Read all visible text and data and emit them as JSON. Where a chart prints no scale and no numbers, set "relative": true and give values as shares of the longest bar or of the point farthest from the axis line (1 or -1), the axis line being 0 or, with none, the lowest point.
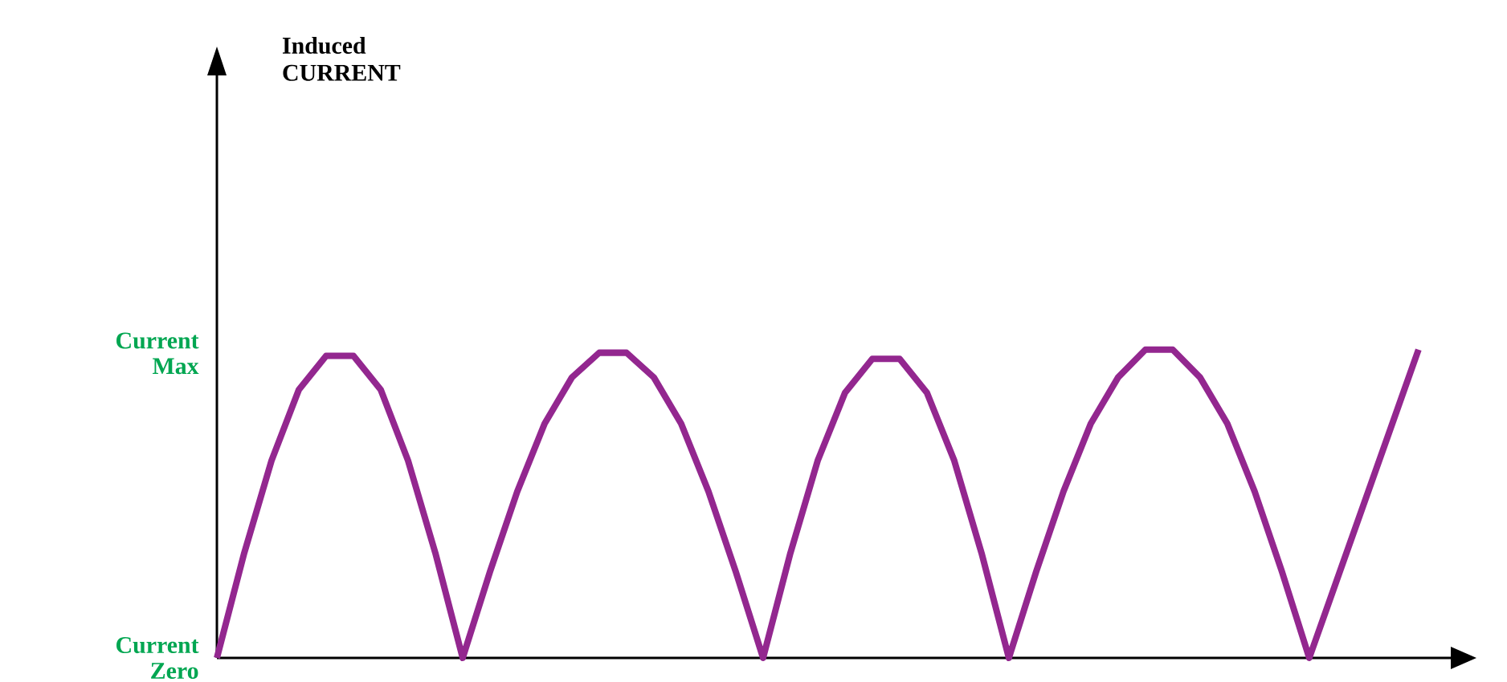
{
  "chart_data": {
    "type": "line",
    "relative": true,
    "categories": [
      null,
      null,
      null,
      null,
      null,
      null,
      null,
      null,
      null,
      null,
      null,
      null,
      null,
      null,
      null,
      null,
      null,
      null,
      null,
      null,
      null,
      null,
      null,
      null,
      null,
      null,
      null,
      null,
      null,
      null,
      null,
      null,
      null,
      null,
      null,
      null,
      null,
      null,
      null,
      null,
      null,
      null,
      null,
      null,
      null
    ],
    "series": [
      {
        "color": "#93278f",
        "values": [
          0,
          0.34,
          0.64,
          0.87,
          0.98,
          0.98,
          0.87,
          0.64,
          0.34,
          0,
          0.28,
          0.54,
          0.76,
          0.91,
          0.99,
          0.99,
          0.91,
          0.76,
          0.54,
          0.28,
          0,
          0.34,
          0.64,
          0.86,
          0.97,
          0.97,
          0.86,
          0.64,
          0.34,
          0,
          0.28,
          0.54,
          0.76,
          0.91,
          1.0,
          1.0,
          0.91,
          0.76,
          0.54,
          0.28,
          0,
          0.25,
          0.5,
          0.75,
          1.0
        ]
      }
    ],
    "annotations": [
      "Induced CURRENT",
      "Current Max",
      "Current Zero"
    ],
    "marker": "none",
    "line_style": "solid"
  }
}
